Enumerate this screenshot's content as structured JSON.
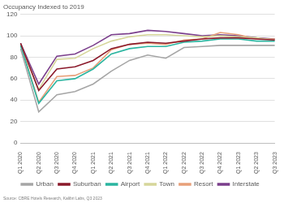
{
  "chart_data": {
    "type": "line",
    "y_label": "Occupancy Indexed to 2019",
    "source": "Source: CBRE Hotels Research, Kalibri Labs, Q3 2023",
    "categories": [
      "Q1 2020",
      "Q2 2020",
      "Q3 2020",
      "Q4 2020",
      "Q1 2021",
      "Q2 2021",
      "Q3 2021",
      "Q4 2021",
      "Q1 2022",
      "Q2 2022",
      "Q3 2022",
      "Q4 2022",
      "Q1 2023",
      "Q2 2023",
      "Q3 2023"
    ],
    "series": [
      {
        "name": "Urban",
        "color": "#a6a6a6",
        "values": [
          88,
          29,
          45,
          48,
          55,
          67,
          77,
          82,
          79,
          89,
          90,
          91,
          91,
          91,
          91
        ]
      },
      {
        "name": "Suburban",
        "color": "#8b1a2b",
        "values": [
          93,
          49,
          69,
          71,
          77,
          88,
          92,
          94,
          93,
          95,
          97,
          98,
          98,
          97,
          96
        ]
      },
      {
        "name": "Airport",
        "color": "#2bb5a0",
        "values": [
          91,
          37,
          58,
          60,
          69,
          83,
          88,
          90,
          90,
          94,
          95,
          97,
          97,
          95,
          95
        ]
      },
      {
        "name": "Town",
        "color": "#d6d69a",
        "values": [
          92,
          50,
          78,
          79,
          88,
          95,
          99,
          101,
          101,
          100,
          99,
          100,
          99,
          98,
          96
        ]
      },
      {
        "name": "Resort",
        "color": "#e8a07a",
        "values": [
          92,
          38,
          62,
          63,
          70,
          87,
          92,
          93,
          92,
          96,
          97,
          103,
          101,
          97,
          97
        ]
      },
      {
        "name": "Interstate",
        "color": "#7b3f8c",
        "values": [
          93,
          55,
          81,
          83,
          91,
          101,
          102,
          105,
          104,
          102,
          100,
          101,
          100,
          98,
          97
        ]
      }
    ],
    "ylim": [
      0,
      120
    ],
    "yticks": [
      0,
      20,
      40,
      60,
      80,
      100,
      120
    ],
    "grid": true,
    "legend": "bottom"
  }
}
